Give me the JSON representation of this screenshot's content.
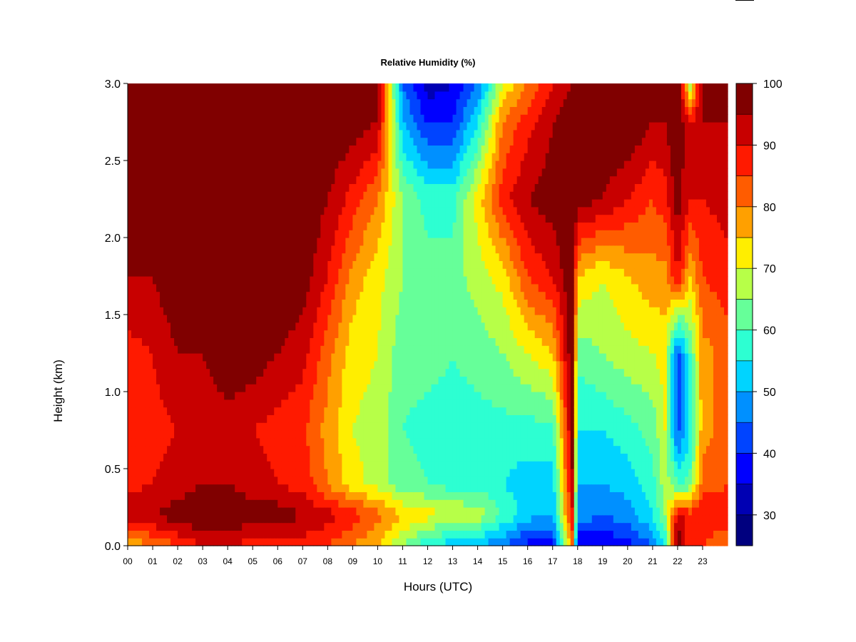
{
  "chart_data": {
    "type": "heatmap",
    "title": "Relative Humidity (%)",
    "xlabel": "Hours (UTC)",
    "ylabel": "Height (km)",
    "x_ticks": [
      "00",
      "01",
      "02",
      "03",
      "04",
      "05",
      "06",
      "07",
      "08",
      "09",
      "10",
      "11",
      "12",
      "13",
      "14",
      "15",
      "16",
      "17",
      "18",
      "19",
      "20",
      "21",
      "22",
      "23"
    ],
    "y_ticks": [
      "0.0",
      "0.5",
      "1.0",
      "1.5",
      "2.0",
      "2.5",
      "3.0"
    ],
    "xlim": [
      0,
      24
    ],
    "ylim": [
      0,
      3
    ],
    "colorbar": {
      "ticks": [
        "30",
        "40",
        "50",
        "60",
        "70",
        "80",
        "90",
        "100"
      ],
      "range": [
        25,
        100
      ],
      "levels": [
        25,
        30,
        35,
        40,
        45,
        50,
        55,
        60,
        65,
        70,
        75,
        80,
        85,
        90,
        95,
        100
      ],
      "colors": [
        "#00007f",
        "#0000b3",
        "#0000ff",
        "#0044ff",
        "#0090ff",
        "#00d4ff",
        "#2dffd2",
        "#66ff99",
        "#b7ff48",
        "#ffee00",
        "#ffa000",
        "#ff5c00",
        "#ff1a00",
        "#c80000",
        "#800000"
      ]
    },
    "heights_km": [
      0.0,
      0.2,
      0.4,
      0.75,
      1.25,
      1.75,
      2.25,
      2.75,
      3.0
    ],
    "hours_utc": [
      0,
      1,
      2,
      3,
      4,
      5,
      6,
      7,
      8,
      9,
      10,
      11,
      12,
      13,
      14,
      15,
      16,
      17,
      17.8,
      18,
      19,
      20,
      21,
      21.5,
      22,
      22.5,
      23,
      24
    ],
    "rh_profiles": [
      [
        75,
        95,
        88,
        90,
        88,
        95,
        100,
        100,
        100
      ],
      [
        80,
        95,
        90,
        88,
        90,
        95,
        100,
        100,
        100
      ],
      [
        85,
        98,
        92,
        90,
        95,
        100,
        100,
        100,
        100
      ],
      [
        90,
        100,
        95,
        90,
        95,
        100,
        100,
        100,
        100
      ],
      [
        90,
        100,
        95,
        92,
        100,
        100,
        100,
        100,
        100
      ],
      [
        88,
        98,
        92,
        90,
        98,
        100,
        100,
        100,
        100
      ],
      [
        88,
        98,
        90,
        88,
        95,
        100,
        100,
        100,
        100
      ],
      [
        88,
        95,
        88,
        86,
        92,
        98,
        100,
        100,
        100
      ],
      [
        85,
        92,
        80,
        78,
        82,
        90,
        95,
        100,
        100
      ],
      [
        80,
        88,
        72,
        70,
        72,
        78,
        88,
        98,
        100
      ],
      [
        75,
        82,
        68,
        68,
        70,
        72,
        80,
        95,
        98
      ],
      [
        65,
        75,
        62,
        60,
        62,
        65,
        65,
        50,
        45
      ],
      [
        55,
        72,
        60,
        58,
        62,
        62,
        58,
        40,
        32
      ],
      [
        52,
        70,
        58,
        58,
        60,
        62,
        58,
        40,
        35
      ],
      [
        50,
        68,
        58,
        58,
        62,
        68,
        72,
        55,
        45
      ],
      [
        45,
        60,
        55,
        58,
        65,
        72,
        88,
        80,
        70
      ],
      [
        38,
        52,
        52,
        58,
        70,
        85,
        95,
        88,
        80
      ],
      [
        38,
        50,
        52,
        58,
        75,
        90,
        98,
        95,
        90
      ],
      [
        80,
        90,
        95,
        98,
        100,
        100,
        100,
        100,
        95
      ],
      [
        35,
        48,
        50,
        55,
        62,
        75,
        98,
        100,
        98
      ],
      [
        35,
        45,
        50,
        55,
        65,
        70,
        95,
        100,
        100
      ],
      [
        38,
        48,
        52,
        58,
        68,
        75,
        90,
        100,
        100
      ],
      [
        45,
        55,
        58,
        62,
        70,
        78,
        85,
        95,
        100
      ],
      [
        55,
        65,
        68,
        70,
        72,
        78,
        88,
        95,
        100
      ],
      [
        100,
        92,
        60,
        42,
        42,
        90,
        98,
        100,
        100
      ],
      [
        85,
        88,
        62,
        55,
        60,
        75,
        90,
        90,
        65
      ],
      [
        85,
        90,
        82,
        78,
        78,
        85,
        90,
        95,
        100
      ],
      [
        80,
        88,
        85,
        82,
        82,
        88,
        92,
        95,
        100
      ]
    ]
  }
}
